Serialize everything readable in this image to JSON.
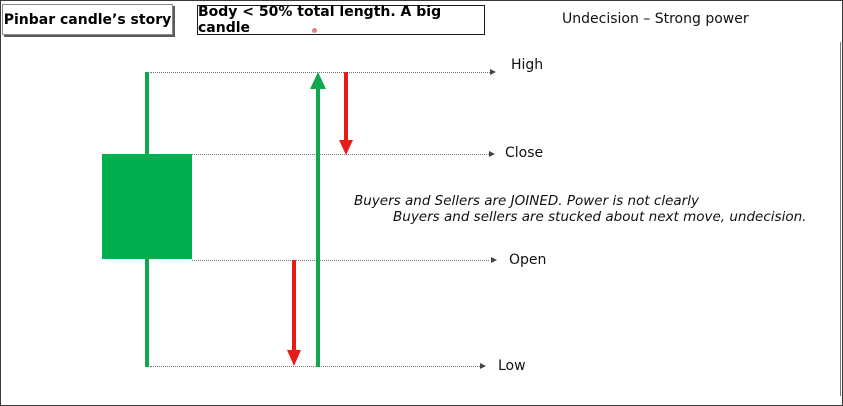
{
  "header": {
    "title": "Pinbar candle’s story",
    "body_note": "Body < 50% total length. A big candle",
    "right_note": "Undecision – Strong power"
  },
  "levels": {
    "high": "High",
    "close": "Close",
    "open": "Open",
    "low": "Low"
  },
  "notes": {
    "line1": "Buyers and Sellers are JOINED. Power is not clearly",
    "line2": "Buyers and sellers are stucked about next move, undecision."
  },
  "colors": {
    "candle_body": "#00b050",
    "candle_wick": "#11a74e",
    "up_arrow": "#11a74e",
    "down_arrow": "#e81b1b"
  }
}
